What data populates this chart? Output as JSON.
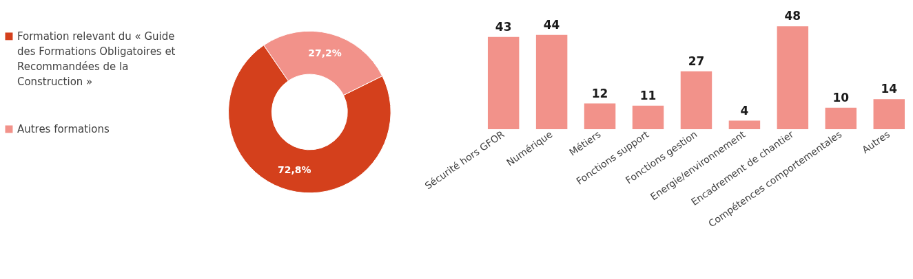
{
  "chart_data": [
    {
      "type": "donut",
      "categories": [
        "Formation relevant du « Guide des Formations Obligatoires et Recommandées de la Construction »",
        "Autres formations"
      ],
      "values": [
        72.8,
        27.2
      ],
      "colors": [
        "#d4401c",
        "#f2928a"
      ],
      "value_labels": [
        "72,8%",
        "27,2%"
      ],
      "legend": "left"
    },
    {
      "type": "bar",
      "categories": [
        "Sécurité hors GFOR",
        "Numérique",
        "Métiers",
        "Fonctions support",
        "Fonctions gestion",
        "Energie/environnement",
        "Encadrement de chantier",
        "Compétences comportementales",
        "Autres"
      ],
      "values": [
        43,
        44,
        12,
        11,
        27,
        4,
        48,
        10,
        14
      ],
      "color": "#f2928a",
      "data_labels": true
    }
  ]
}
